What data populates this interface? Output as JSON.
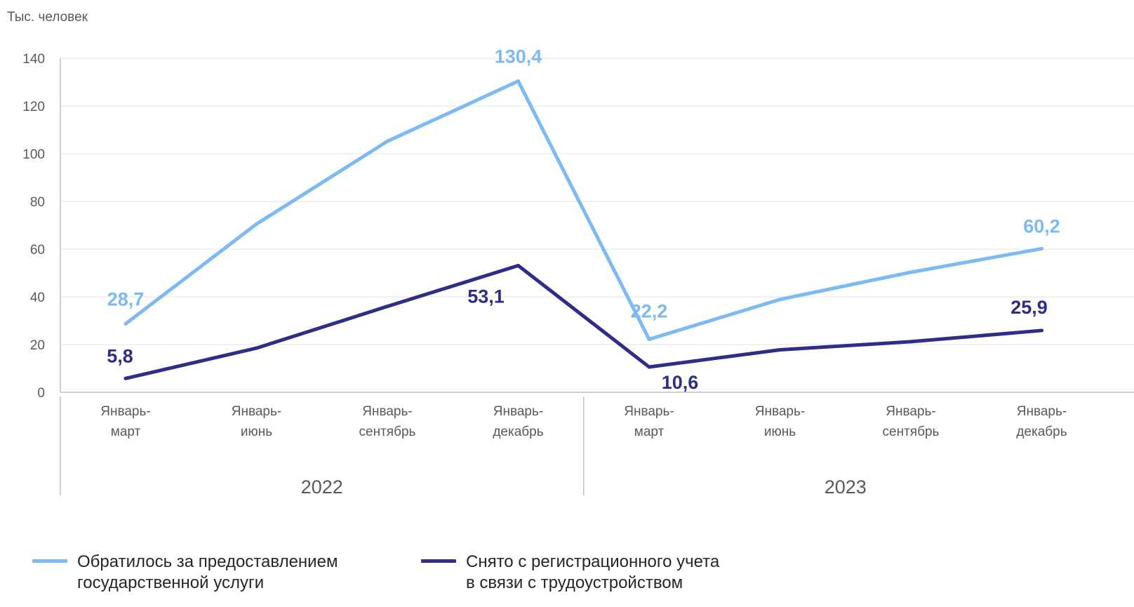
{
  "unit_label": "Тыс. человек",
  "chart_data": {
    "type": "line",
    "ylim": [
      0,
      140
    ],
    "yticks": [
      "0",
      "20",
      "40",
      "60",
      "80",
      "100",
      "120",
      "140"
    ],
    "categories": [
      [
        "Январь-",
        "март"
      ],
      [
        "Январь-",
        "июнь"
      ],
      [
        "Январь-",
        "сентябрь"
      ],
      [
        "Январь-",
        "декабрь"
      ],
      [
        "Январь-",
        "март"
      ],
      [
        "Январь-",
        "июнь"
      ],
      [
        "Январь-",
        "сентябрь"
      ],
      [
        "Январь-",
        "декабрь"
      ]
    ],
    "groups": [
      {
        "label": "2022",
        "span": [
          0,
          3
        ]
      },
      {
        "label": "2023",
        "span": [
          4,
          7
        ]
      }
    ],
    "grid": true,
    "legend_position": "bottom-left",
    "series": [
      {
        "name": "Обратилось за предоставлением государственной услуги",
        "name_lines": [
          "Обратилось за предоставлением",
          "государственной услуги"
        ],
        "color": "#7cb9f5",
        "values": [
          28.7,
          70.5,
          105.2,
          130.4,
          22.2,
          38.9,
          50.3,
          60.2
        ],
        "data_labels": {
          "0": "28,7",
          "3": "130,4",
          "4": "22,2",
          "7": "60,2"
        }
      },
      {
        "name": "Снято с регистрационного учета в связи с трудоустройством",
        "name_lines": [
          "Снято с регистрационного учета",
          "в связи с трудоустройством"
        ],
        "color": "#2e2d87",
        "values": [
          5.8,
          18.5,
          36.0,
          53.1,
          10.6,
          17.8,
          21.2,
          25.9
        ],
        "data_labels": {
          "0": "5,8",
          "3": "53,1",
          "4": "10,6",
          "7": "25,9"
        }
      }
    ]
  }
}
